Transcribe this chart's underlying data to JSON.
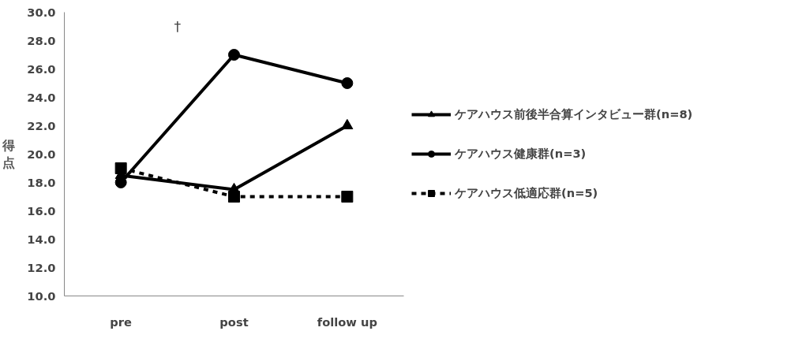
{
  "chart_data": {
    "type": "line",
    "ylabel": "得点",
    "categories": [
      "pre",
      "post",
      "follow up"
    ],
    "series": [
      {
        "name": "ケアハウス前後半合算インタビュー群(n=8)",
        "color": "#000000",
        "values": [
          18.5,
          17.5,
          22.0
        ],
        "marker": "triangle",
        "line_style": "solid"
      },
      {
        "name": "ケアハウス健康群(n=3)",
        "color": "#000000",
        "values": [
          18.0,
          27.0,
          25.0
        ],
        "marker": "circle",
        "line_style": "solid"
      },
      {
        "name": "ケアハウス低適応群(n=5)",
        "color": "#000000",
        "values": [
          19.0,
          17.0,
          17.0
        ],
        "marker": "square",
        "line_style": "dashed"
      }
    ],
    "ylim": [
      10,
      30
    ],
    "yticks": [
      {
        "value": 10,
        "label": "10.0"
      },
      {
        "value": 12,
        "label": "12.0"
      },
      {
        "value": 14,
        "label": "14.0"
      },
      {
        "value": 16,
        "label": "16.0"
      },
      {
        "value": 18,
        "label": "18.0"
      },
      {
        "value": 20,
        "label": "20.0"
      },
      {
        "value": 22,
        "label": "22.0"
      },
      {
        "value": 24,
        "label": "24.0"
      },
      {
        "value": 26,
        "label": "26.0"
      },
      {
        "value": 28,
        "label": "28.0"
      },
      {
        "value": 30,
        "label": "30.0"
      }
    ],
    "annotations": [
      "†"
    ],
    "grid": false,
    "legend": "right"
  }
}
